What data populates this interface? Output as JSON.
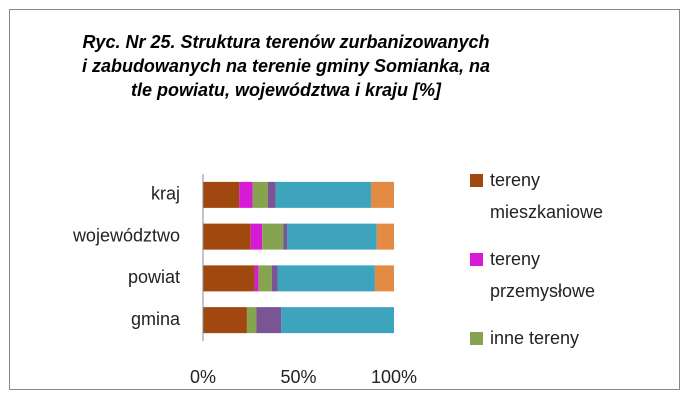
{
  "chart_data": {
    "type": "stacked_bar_horizontal",
    "title": "Ryc. Nr 25. Struktura terenów zurbanizowanych i zabudowanych na terenie gminy Somianka, na tle powiatu, województwa i kraju [%]",
    "categories": [
      "kraj",
      "województwo",
      "powiat",
      "gmina"
    ],
    "series": [
      {
        "name": "tereny mieszkaniowe",
        "color": "#a0480f",
        "values": [
          19,
          25,
          27,
          23
        ]
      },
      {
        "name": "tereny przemysłowe",
        "color": "#d61ad6",
        "values": [
          7,
          6,
          2,
          0
        ]
      },
      {
        "name": "inne tereny",
        "color": "#86a350",
        "values": [
          8,
          11,
          7,
          5
        ]
      },
      {
        "name": null,
        "color": "#7a5494",
        "values": [
          4,
          2,
          3,
          13
        ]
      },
      {
        "name": null,
        "color": "#3ea4bd",
        "values": [
          50,
          47,
          51,
          59
        ]
      },
      {
        "name": null,
        "color": "#e38a45",
        "values": [
          12,
          9,
          10,
          0
        ]
      }
    ],
    "xlim": [
      0,
      100
    ],
    "xticks": [
      {
        "value": 0,
        "label": "0%"
      },
      {
        "value": 50,
        "label": "50%"
      },
      {
        "value": 100,
        "label": "100%"
      }
    ]
  }
}
